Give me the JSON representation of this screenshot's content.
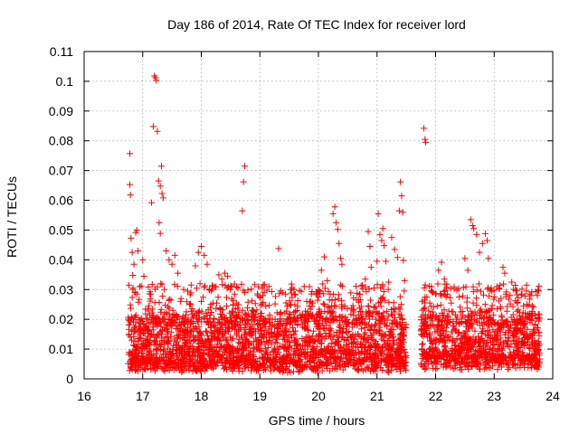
{
  "colors": {
    "series": "#ff0000",
    "axis": "#000000",
    "grid": "#a0a0a0"
  },
  "chart_data": {
    "type": "scatter",
    "title": "Day 186 of 2014, Rate Of TEC Index for receiver lord",
    "xlabel": "GPS time / hours",
    "ylabel": "ROTI / TECUs",
    "xlim": [
      16,
      24
    ],
    "ylim": [
      0,
      0.11
    ],
    "xticks": [
      "16",
      "17",
      "18",
      "19",
      "20",
      "21",
      "22",
      "23",
      "24"
    ],
    "yticks": [
      "0",
      "0.01",
      "0.02",
      "0.03",
      "0.04",
      "0.05",
      "0.06",
      "0.07",
      "0.08",
      "0.09",
      "0.1",
      "0.11"
    ],
    "grid": true,
    "marker": "plus",
    "series": [
      {
        "points": [
          [
            16.78,
            0.0757
          ],
          [
            16.78,
            0.0653
          ],
          [
            16.79,
            0.0618
          ],
          [
            16.8,
            0.0473
          ],
          [
            16.82,
            0.0425
          ],
          [
            16.85,
            0.0385
          ],
          [
            16.83,
            0.0348
          ],
          [
            16.88,
            0.0492
          ],
          [
            16.9,
            0.05
          ],
          [
            16.92,
            0.043
          ],
          [
            16.87,
            0.029
          ],
          [
            16.9,
            0.0285
          ],
          [
            16.95,
            0.031
          ],
          [
            17.0,
            0.04
          ],
          [
            17.02,
            0.0345
          ],
          [
            17.05,
            0.0172
          ],
          [
            17.1,
            0.0115
          ],
          [
            17.12,
            0.0215
          ],
          [
            17.15,
            0.0592
          ],
          [
            17.18,
            0.0848
          ],
          [
            17.2,
            0.1018
          ],
          [
            17.22,
            0.1012
          ],
          [
            17.23,
            0.1003
          ],
          [
            17.25,
            0.0832
          ],
          [
            17.27,
            0.0665
          ],
          [
            17.3,
            0.0648
          ],
          [
            17.32,
            0.0715
          ],
          [
            17.33,
            0.0623
          ],
          [
            17.35,
            0.0608
          ],
          [
            17.28,
            0.0525
          ],
          [
            17.3,
            0.0489
          ],
          [
            17.4,
            0.043
          ],
          [
            17.45,
            0.04
          ],
          [
            17.5,
            0.0385
          ],
          [
            17.55,
            0.0415
          ],
          [
            17.6,
            0.0355
          ],
          [
            17.7,
            0.03
          ],
          [
            17.8,
            0.025
          ],
          [
            17.9,
            0.038
          ],
          [
            17.95,
            0.0425
          ],
          [
            18.0,
            0.0445
          ],
          [
            18.05,
            0.0415
          ],
          [
            18.1,
            0.0385
          ],
          [
            18.2,
            0.031
          ],
          [
            18.3,
            0.035
          ],
          [
            18.35,
            0.0335
          ],
          [
            18.4,
            0.0355
          ],
          [
            18.45,
            0.0345
          ],
          [
            18.5,
            0.03
          ],
          [
            18.6,
            0.0255
          ],
          [
            18.7,
            0.0565
          ],
          [
            18.72,
            0.0662
          ],
          [
            18.74,
            0.0715
          ],
          [
            18.8,
            0.0218
          ],
          [
            18.9,
            0.0195
          ],
          [
            19.0,
            0.0275
          ],
          [
            19.05,
            0.028
          ],
          [
            19.1,
            0.02
          ],
          [
            19.2,
            0.0155
          ],
          [
            19.32,
            0.0438
          ],
          [
            19.4,
            0.0145
          ],
          [
            19.5,
            0.0125
          ],
          [
            19.6,
            0.0195
          ],
          [
            19.7,
            0.0205
          ],
          [
            19.8,
            0.026
          ],
          [
            19.9,
            0.0255
          ],
          [
            20.0,
            0.0275
          ],
          [
            20.05,
            0.0365
          ],
          [
            20.1,
            0.041
          ],
          [
            20.15,
            0.033
          ],
          [
            20.2,
            0.0285
          ],
          [
            20.25,
            0.0555
          ],
          [
            20.28,
            0.0578
          ],
          [
            20.3,
            0.0525
          ],
          [
            20.33,
            0.0502
          ],
          [
            20.35,
            0.0455
          ],
          [
            20.38,
            0.0405
          ],
          [
            20.4,
            0.0385
          ],
          [
            20.45,
            0.0245
          ],
          [
            20.5,
            0.0185
          ],
          [
            20.6,
            0.0225
          ],
          [
            20.7,
            0.0285
          ],
          [
            20.75,
            0.0315
          ],
          [
            20.8,
            0.0335
          ],
          [
            20.85,
            0.0495
          ],
          [
            20.88,
            0.0445
          ],
          [
            20.9,
            0.0375
          ],
          [
            20.95,
            0.0305
          ],
          [
            21.0,
            0.0395
          ],
          [
            21.02,
            0.0555
          ],
          [
            21.05,
            0.0485
          ],
          [
            21.08,
            0.0465
          ],
          [
            21.1,
            0.0505
          ],
          [
            21.12,
            0.0448
          ],
          [
            21.15,
            0.0395
          ],
          [
            21.2,
            0.0325
          ],
          [
            21.25,
            0.0475
          ],
          [
            21.3,
            0.0435
          ],
          [
            21.35,
            0.0408
          ],
          [
            21.38,
            0.0565
          ],
          [
            21.4,
            0.0662
          ],
          [
            21.42,
            0.0615
          ],
          [
            21.44,
            0.056
          ],
          [
            21.45,
            0.0398
          ],
          [
            21.47,
            0.033
          ],
          [
            21.8,
            0.0842
          ],
          [
            21.82,
            0.0805
          ],
          [
            21.83,
            0.0795
          ],
          [
            21.85,
            0.0275
          ],
          [
            21.9,
            0.0255
          ],
          [
            21.95,
            0.0225
          ],
          [
            22.0,
            0.0285
          ],
          [
            22.05,
            0.0365
          ],
          [
            22.1,
            0.0392
          ],
          [
            22.15,
            0.0335
          ],
          [
            22.2,
            0.0285
          ],
          [
            22.3,
            0.0225
          ],
          [
            22.4,
            0.0275
          ],
          [
            22.5,
            0.0405
          ],
          [
            22.55,
            0.0365
          ],
          [
            22.6,
            0.0535
          ],
          [
            22.63,
            0.0515
          ],
          [
            22.65,
            0.0505
          ],
          [
            22.7,
            0.0485
          ],
          [
            22.75,
            0.0425
          ],
          [
            22.8,
            0.0455
          ],
          [
            22.85,
            0.0488
          ],
          [
            22.88,
            0.0465
          ],
          [
            22.9,
            0.0405
          ],
          [
            22.95,
            0.0305
          ],
          [
            23.0,
            0.0275
          ],
          [
            23.05,
            0.0235
          ],
          [
            23.1,
            0.0315
          ],
          [
            23.15,
            0.0375
          ],
          [
            23.18,
            0.0355
          ],
          [
            23.2,
            0.0285
          ],
          [
            23.3,
            0.0325
          ],
          [
            23.4,
            0.0255
          ],
          [
            23.5,
            0.0245
          ],
          [
            23.55,
            0.0295
          ],
          [
            23.6,
            0.0285
          ],
          [
            23.65,
            0.0245
          ],
          [
            23.7,
            0.0215
          ],
          [
            23.75,
            0.0205
          ]
        ]
      }
    ],
    "density_bands": [
      {
        "x": [
          16.75,
          21.5
        ],
        "y": [
          0.002,
          0.02
        ]
      },
      {
        "x": [
          21.75,
          23.78
        ],
        "y": [
          0.003,
          0.02
        ]
      }
    ]
  }
}
